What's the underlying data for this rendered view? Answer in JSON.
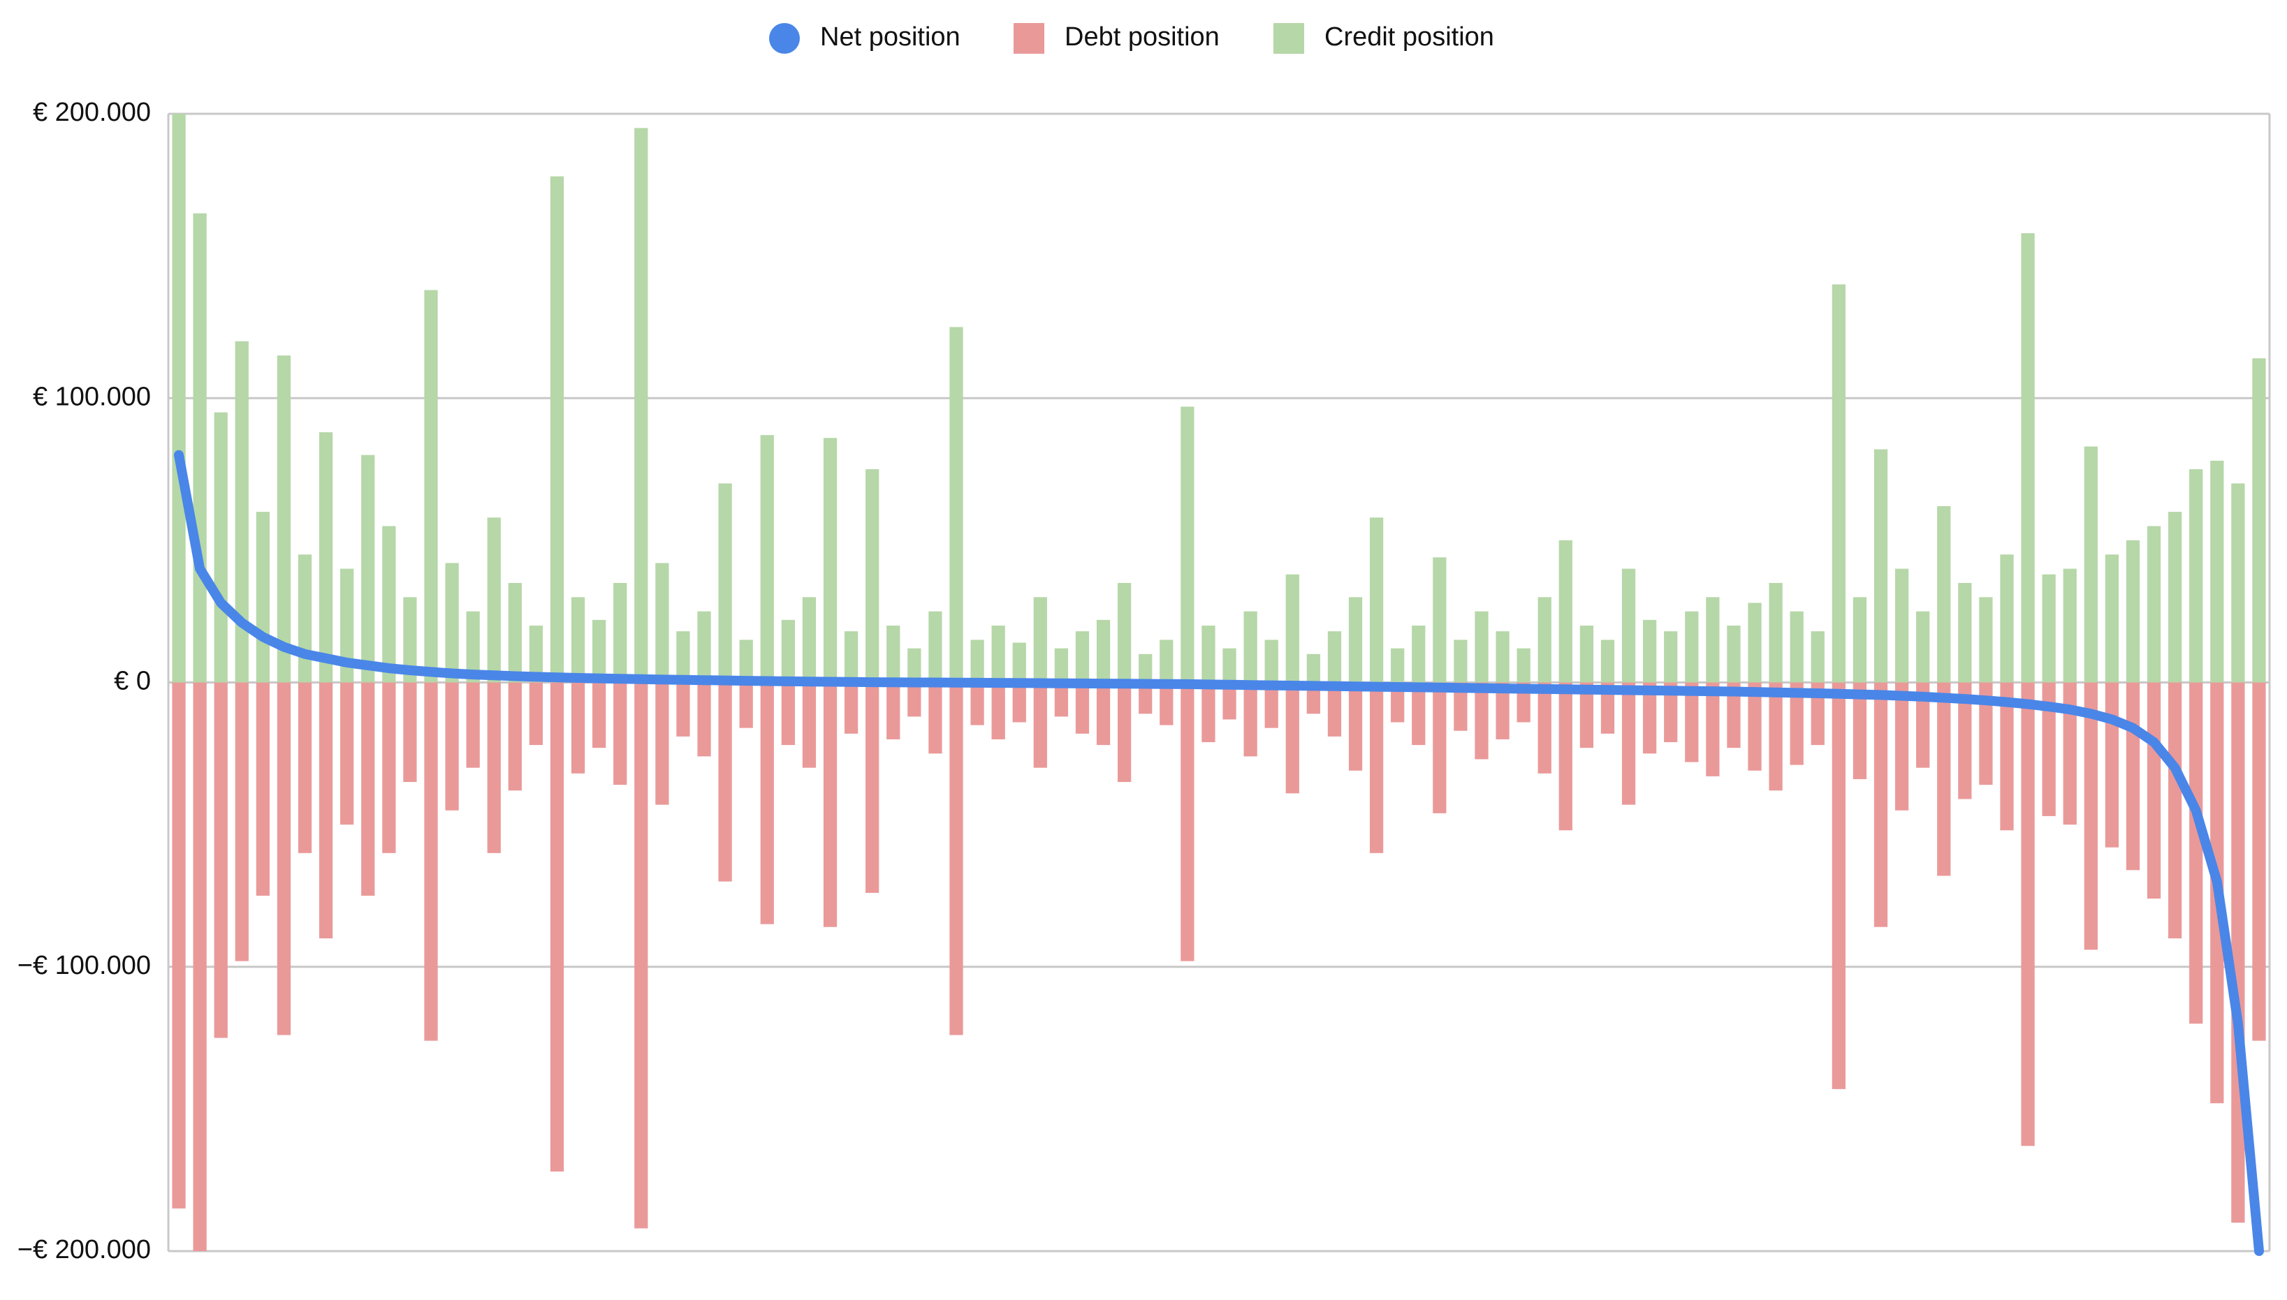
{
  "chart_data": {
    "type": "bar",
    "legend": "top",
    "grid": true,
    "ylim": [
      -200000,
      200000
    ],
    "yticks": [
      {
        "value": -200000,
        "label": "−€ 200.000"
      },
      {
        "value": -100000,
        "label": "−€ 100.000"
      },
      {
        "value": 0,
        "label": "€ 0"
      },
      {
        "value": 100000,
        "label": "€ 100.000"
      },
      {
        "value": 200000,
        "label": "€ 200.000"
      }
    ],
    "categories": [
      null,
      null,
      null,
      null,
      null,
      null,
      null,
      null,
      null,
      null,
      null,
      null,
      null,
      null,
      null,
      null,
      null,
      null,
      null,
      null,
      null,
      null,
      null,
      null,
      null,
      null,
      null,
      null,
      null,
      null,
      null,
      null,
      null,
      null,
      null,
      null,
      null,
      null,
      null,
      null,
      null,
      null,
      null,
      null,
      null,
      null,
      null,
      null,
      null,
      null,
      null,
      null,
      null,
      null,
      null,
      null,
      null,
      null,
      null,
      null,
      null,
      null,
      null,
      null,
      null,
      null,
      null,
      null,
      null,
      null,
      null,
      null,
      null,
      null,
      null,
      null,
      null,
      null,
      null,
      null,
      null,
      null,
      null,
      null,
      null,
      null,
      null,
      null,
      null,
      null,
      null,
      null,
      null,
      null,
      null,
      null,
      null,
      null,
      null,
      null
    ],
    "series": [
      {
        "name": "Net position",
        "type": "line",
        "color": "#4a86e8",
        "values": [
          80000,
          40000,
          28000,
          21000,
          16000,
          12500,
          10000,
          8500,
          7000,
          6000,
          5000,
          4300,
          3700,
          3200,
          2800,
          2500,
          2200,
          2000,
          1800,
          1600,
          1450,
          1300,
          1150,
          1000,
          900,
          800,
          700,
          600,
          500,
          400,
          320,
          240,
          160,
          100,
          50,
          0,
          0,
          -50,
          -100,
          -150,
          -200,
          -250,
          -300,
          -350,
          -400,
          -450,
          -500,
          -550,
          -600,
          -700,
          -800,
          -900,
          -1000,
          -1100,
          -1200,
          -1300,
          -1400,
          -1500,
          -1600,
          -1700,
          -1800,
          -1900,
          -2000,
          -2100,
          -2200,
          -2300,
          -2400,
          -2500,
          -2600,
          -2700,
          -2800,
          -2900,
          -3000,
          -3100,
          -3200,
          -3350,
          -3500,
          -3650,
          -3800,
          -4000,
          -4200,
          -4400,
          -4700,
          -5000,
          -5400,
          -5800,
          -6300,
          -6900,
          -7600,
          -8500,
          -9500,
          -11000,
          -13000,
          -16000,
          -21000,
          -30000,
          -45000,
          -70000,
          -120000,
          -200000
        ]
      },
      {
        "name": "Debt position",
        "type": "bar",
        "color": "#ea9999",
        "values": [
          -185000,
          -200000,
          -125000,
          -98000,
          -75000,
          -124000,
          -60000,
          -90000,
          -50000,
          -75000,
          -60000,
          -35000,
          -126000,
          -45000,
          -30000,
          -60000,
          -38000,
          -22000,
          -172000,
          -32000,
          -23000,
          -36000,
          -192000,
          -43000,
          -19000,
          -26000,
          -70000,
          -16000,
          -85000,
          -22000,
          -30000,
          -86000,
          -18000,
          -74000,
          -20000,
          -12000,
          -25000,
          -124000,
          -15000,
          -20000,
          -14000,
          -30000,
          -12000,
          -18000,
          -22000,
          -35000,
          -11000,
          -15000,
          -98000,
          -21000,
          -13000,
          -26000,
          -16000,
          -39000,
          -11000,
          -19000,
          -31000,
          -60000,
          -14000,
          -22000,
          -46000,
          -17000,
          -27000,
          -20000,
          -14000,
          -32000,
          -52000,
          -23000,
          -18000,
          -43000,
          -25000,
          -21000,
          -28000,
          -33000,
          -23000,
          -31000,
          -38000,
          -29000,
          -22000,
          -143000,
          -34000,
          -86000,
          -45000,
          -30000,
          -68000,
          -41000,
          -36000,
          -52000,
          -163000,
          -47000,
          -50000,
          -94000,
          -58000,
          -66000,
          -76000,
          -90000,
          -120000,
          -148000,
          -190000,
          -126000
        ]
      },
      {
        "name": "Credit position",
        "type": "bar",
        "color": "#b6d7a8",
        "values": [
          200000,
          165000,
          95000,
          120000,
          60000,
          115000,
          45000,
          88000,
          40000,
          80000,
          55000,
          30000,
          138000,
          42000,
          25000,
          58000,
          35000,
          20000,
          178000,
          30000,
          22000,
          35000,
          195000,
          42000,
          18000,
          25000,
          70000,
          15000,
          87000,
          22000,
          30000,
          86000,
          18000,
          75000,
          20000,
          12000,
          25000,
          125000,
          15000,
          20000,
          14000,
          30000,
          12000,
          18000,
          22000,
          35000,
          10000,
          15000,
          97000,
          20000,
          12000,
          25000,
          15000,
          38000,
          10000,
          18000,
          30000,
          58000,
          12000,
          20000,
          44000,
          15000,
          25000,
          18000,
          12000,
          30000,
          50000,
          20000,
          15000,
          40000,
          22000,
          18000,
          25000,
          30000,
          20000,
          28000,
          35000,
          25000,
          18000,
          140000,
          30000,
          82000,
          40000,
          25000,
          62000,
          35000,
          30000,
          45000,
          158000,
          38000,
          40000,
          83000,
          45000,
          50000,
          55000,
          60000,
          75000,
          78000,
          70000,
          114000
        ]
      }
    ]
  }
}
